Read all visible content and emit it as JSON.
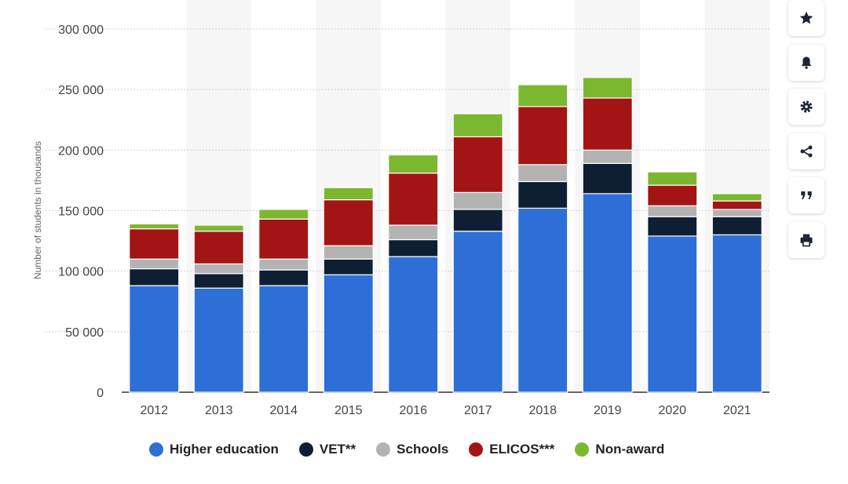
{
  "chart_data": {
    "type": "bar",
    "stacked": true,
    "categories": [
      "2012",
      "2013",
      "2014",
      "2015",
      "2016",
      "2017",
      "2018",
      "2019",
      "2020",
      "2021"
    ],
    "series": [
      {
        "name": "Higher education",
        "color": "#2d6fd6",
        "values": [
          88000,
          86000,
          88000,
          97000,
          112000,
          133000,
          152000,
          164000,
          129000,
          130000
        ]
      },
      {
        "name": "VET**",
        "color": "#0f1f33",
        "values": [
          14000,
          12000,
          13000,
          13000,
          14000,
          18000,
          22000,
          25000,
          16000,
          15000
        ]
      },
      {
        "name": "Schools",
        "color": "#b3b3b3",
        "values": [
          8000,
          8000,
          9000,
          11000,
          12000,
          14000,
          14000,
          11000,
          9000,
          6000
        ]
      },
      {
        "name": "ELICOS***",
        "color": "#a31515",
        "values": [
          25000,
          27000,
          33000,
          38000,
          43000,
          46000,
          48000,
          43000,
          17000,
          7000
        ]
      },
      {
        "name": "Non-award",
        "color": "#7cb82f",
        "values": [
          4000,
          5000,
          8000,
          10000,
          15000,
          19000,
          18000,
          17000,
          11000,
          6000
        ]
      }
    ],
    "ylabel": "Number of students in thousands",
    "xlabel": "",
    "ylim": [
      0,
      300000
    ],
    "yticks": [
      0,
      50000,
      100000,
      150000,
      200000,
      250000,
      300000
    ],
    "ytick_labels": [
      "0",
      "50 000",
      "100 000",
      "150 000",
      "200 000",
      "250 000",
      "300 000"
    ],
    "grid": true,
    "legend_position": "bottom"
  },
  "toolbar": {
    "buttons": [
      {
        "name": "favorite-button",
        "icon": "star-icon"
      },
      {
        "name": "notification-button",
        "icon": "bell-icon"
      },
      {
        "name": "settings-button",
        "icon": "gear-icon"
      },
      {
        "name": "share-button",
        "icon": "share-icon"
      },
      {
        "name": "cite-button",
        "icon": "quote-icon"
      },
      {
        "name": "print-button",
        "icon": "printer-icon"
      }
    ]
  }
}
